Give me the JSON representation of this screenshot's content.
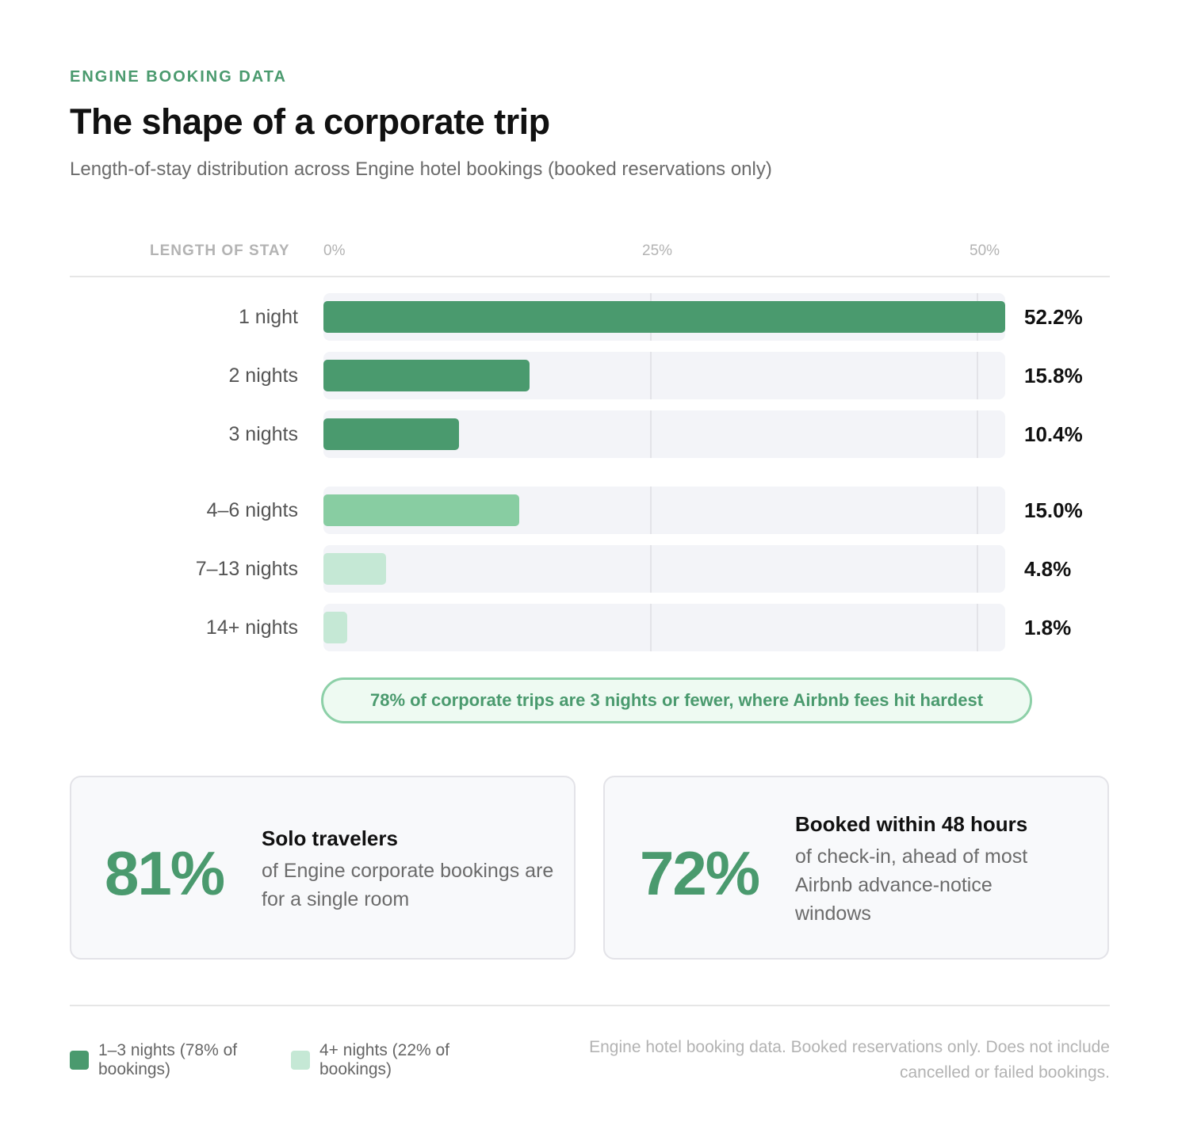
{
  "header": {
    "eyebrow": "ENGINE BOOKING DATA",
    "title": "The shape of a corporate trip",
    "subtitle": "Length-of-stay distribution across Engine hotel bookings (booked reservations only)"
  },
  "chart_data": {
    "type": "bar",
    "orientation": "horizontal",
    "column_header": "LENGTH OF STAY",
    "x_ticks": [
      "0%",
      "25%",
      "50%"
    ],
    "xlim": [
      0,
      52.2
    ],
    "categories": [
      "1 night",
      "2 nights",
      "3 nights",
      "4–6 nights",
      "7–13 nights",
      "14+ nights"
    ],
    "values": [
      52.2,
      15.8,
      10.4,
      15.0,
      4.8,
      1.8
    ],
    "value_labels": [
      "52.2%",
      "15.8%",
      "10.4%",
      "15.0%",
      "4.8%",
      "1.8%"
    ],
    "bar_colors": [
      "#4a9a6e",
      "#4a9a6e",
      "#4a9a6e",
      "#88cda2",
      "#c5e8d5",
      "#c5e8d5"
    ],
    "annotation": "78% of corporate trips are 3 nights or fewer, where Airbnb fees hit hardest",
    "legend": [
      {
        "label": "1–3 nights (78% of bookings)",
        "color": "#4a9a6e"
      },
      {
        "label": "4+ nights (22% of bookings)",
        "color": "#c5e8d5"
      }
    ]
  },
  "stats": [
    {
      "value": "81%",
      "heading": "Solo travelers",
      "body": "of Engine corporate bookings are for a single room"
    },
    {
      "value": "72%",
      "heading": "Booked within 48 hours",
      "body": "of check-in, ahead of most Airbnb advance-notice windows"
    }
  ],
  "footer": {
    "source": "Engine hotel booking data. Booked reservations only. Does not include cancelled or failed bookings."
  },
  "colors": {
    "accent": "#4a9a6e",
    "accent_mid": "#88cda2",
    "accent_light": "#c5e8d5",
    "track": "#f3f4f8"
  }
}
